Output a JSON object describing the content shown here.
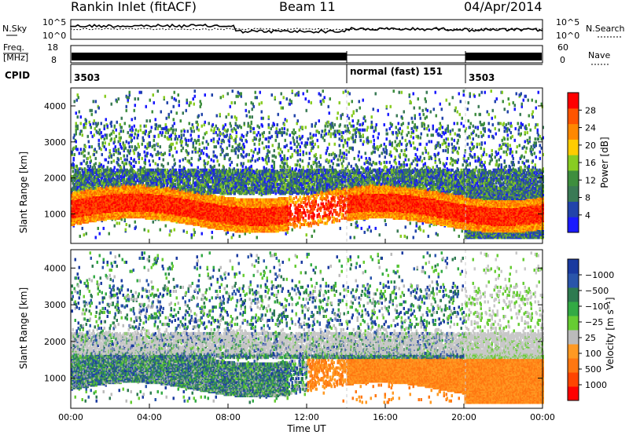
{
  "header": {
    "station": "Rankin Inlet (fitACF)",
    "beam": "Beam 11",
    "date": "04/Apr/2014"
  },
  "top_panels": {
    "nsky_label": "N.Sky",
    "nsearch_label": "N.Search",
    "noise_ticks": [
      "10^5",
      "10^0"
    ],
    "freq_label_1": "Freq.",
    "freq_label_2": "[MHz]",
    "freq_ticks": [
      "18",
      "8"
    ],
    "nave_label": "Nave",
    "nave_ticks": [
      "60",
      "0"
    ],
    "cpid_label": "CPID",
    "cpid_segments": [
      {
        "start_hour": 0,
        "end_hour": 14,
        "label": "3503"
      },
      {
        "start_hour": 14,
        "end_hour": 20,
        "label": "normal (fast) 151"
      },
      {
        "start_hour": 20,
        "end_hour": 24,
        "label": "3503"
      }
    ]
  },
  "colors": {
    "power_scale": [
      "#1a1aff",
      "#2244aa",
      "#3a7a55",
      "#3e8e3e",
      "#88cc22",
      "#ffcc00",
      "#ff8800",
      "#ff5500",
      "#ff0000"
    ],
    "velocity_scale": [
      "#1a3aa0",
      "#2a55aa",
      "#2e7a50",
      "#33aa44",
      "#66cc33",
      "#bbbbbb",
      "#ff9922",
      "#ff7711",
      "#ff4400",
      "#ff0000"
    ],
    "gray_band": "#c8c8c8"
  },
  "chart_data": [
    {
      "type": "heatmap",
      "name": "power",
      "xlabel": "",
      "ylabel": "Slant Range [km]",
      "xlim_hours": [
        0,
        24
      ],
      "ylim_km": [
        180,
        4500
      ],
      "y_ticks": [
        "1000",
        "2000",
        "3000",
        "4000"
      ],
      "x_ticks": [
        "00:00",
        "04:00",
        "08:00",
        "12:00",
        "16:00",
        "20:00",
        "00:00"
      ],
      "colorbar_label": "Power [dB]",
      "colorbar_ticks": [
        "4",
        "8",
        "12",
        "16",
        "20",
        "24",
        "28"
      ],
      "colorbar_range": [
        0,
        30
      ]
    },
    {
      "type": "heatmap",
      "name": "velocity",
      "xlabel": "Time UT",
      "ylabel": "Slant Range [km]",
      "xlim_hours": [
        0,
        24
      ],
      "ylim_km": [
        180,
        4500
      ],
      "y_ticks": [
        "1000",
        "2000",
        "3000",
        "4000"
      ],
      "x_ticks": [
        "00:00",
        "04:00",
        "08:00",
        "12:00",
        "16:00",
        "20:00",
        "00:00"
      ],
      "colorbar_label": "Velocity [m s⁻¹]",
      "colorbar_ticks": [
        "1000",
        "500",
        "100",
        "25",
        "−25",
        "−100",
        "−500",
        "−1000"
      ]
    }
  ]
}
